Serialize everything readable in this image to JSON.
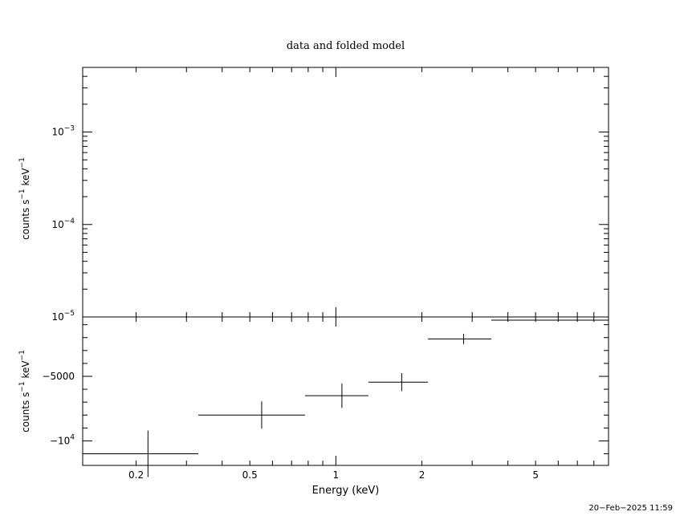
{
  "chart_data": [
    {
      "panel": "top",
      "type": "scatter",
      "title": "data and folded model",
      "ylabel_base": "counts s",
      "ylabel_exp1": "−1",
      "ylabel_mid": " keV",
      "ylabel_exp2": "−1",
      "xscale": "log",
      "yscale": "log",
      "xlim": [
        0.13,
        9.0
      ],
      "ylim": [
        1e-05,
        0.005
      ],
      "yticks": [
        {
          "value": 0.001,
          "base": "10",
          "exp": "−3"
        },
        {
          "value": 0.0001,
          "base": "10",
          "exp": "−4"
        },
        {
          "value": 1e-05,
          "base": "10",
          "exp": "−5"
        }
      ],
      "series": []
    },
    {
      "panel": "bottom",
      "type": "scatter",
      "xlabel": "Energy (keV)",
      "ylabel_base": "counts s",
      "ylabel_exp1": "−1",
      "ylabel_mid": " keV",
      "ylabel_exp2": "−1",
      "xscale": "log",
      "xlim": [
        0.13,
        9.0
      ],
      "ylim": [
        -11900,
        -400
      ],
      "yticks": [
        {
          "value": -5000,
          "text": "−5000"
        },
        {
          "value": -10000,
          "base": "−10",
          "exp": "4"
        }
      ],
      "xticks": [
        {
          "value": 0.2,
          "text": "0.2"
        },
        {
          "value": 0.5,
          "text": "0.5"
        },
        {
          "value": 1,
          "text": "1"
        },
        {
          "value": 2,
          "text": "2"
        },
        {
          "value": 5,
          "text": "5"
        }
      ],
      "points": [
        {
          "x": 0.22,
          "x_lo": 0.13,
          "x_hi": 0.33,
          "y": -11000,
          "y_err": 1800
        },
        {
          "x": 0.55,
          "x_lo": 0.33,
          "x_hi": 0.78,
          "y": -8000,
          "y_err": 1050
        },
        {
          "x": 1.05,
          "x_lo": 0.78,
          "x_hi": 1.3,
          "y": -6500,
          "y_err": 950
        },
        {
          "x": 1.7,
          "x_lo": 1.3,
          "x_hi": 2.1,
          "y": -5450,
          "y_err": 700
        },
        {
          "x": 2.8,
          "x_lo": 2.1,
          "x_hi": 3.5,
          "y": -2100,
          "y_err": 400
        },
        {
          "x": 6.0,
          "x_lo": 3.5,
          "x_hi": 9.0,
          "y": -650,
          "y_err": 0
        }
      ]
    }
  ],
  "timestamp": "20−Feb−2025 11:59"
}
